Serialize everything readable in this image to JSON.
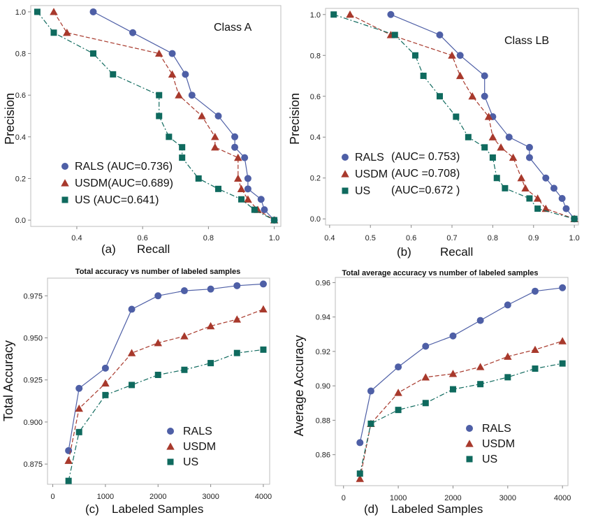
{
  "colors": {
    "RALS": "#4e5fa6",
    "USDM": "#a8392c",
    "US": "#0f6a5e",
    "frame": "#bdbdbd"
  },
  "chart_data": [
    {
      "id": "a",
      "type": "line",
      "subplot_tag": "(a)",
      "xlabel": "Recall",
      "ylabel": "Precision",
      "annotation": "Class A",
      "xlim": [
        0.26,
        1.02
      ],
      "ylim": [
        -0.03,
        1.03
      ],
      "xticks": [
        0.4,
        0.6,
        0.8,
        1.0
      ],
      "xtick_labels": [
        "0.4",
        "0.6",
        "0.8",
        "1.0"
      ],
      "yticks": [
        0.0,
        0.2,
        0.4,
        0.6,
        0.8,
        1.0
      ],
      "ytick_labels": [
        "0.0",
        "0.2",
        "0.4",
        "0.6",
        "0.8",
        "1.0"
      ],
      "legend_position": "bottom-left",
      "series": [
        {
          "name": "RALS",
          "legend": "RALS (AUC=0.736)",
          "marker": "circle",
          "x": [
            0.45,
            0.57,
            0.69,
            0.73,
            0.75,
            0.83,
            0.88,
            0.88,
            0.91,
            0.92,
            0.92,
            0.96,
            0.97,
            1.0
          ],
          "y": [
            1.0,
            0.9,
            0.8,
            0.7,
            0.6,
            0.5,
            0.4,
            0.35,
            0.3,
            0.2,
            0.15,
            0.1,
            0.05,
            0.0
          ]
        },
        {
          "name": "USDM",
          "legend": "USDM(AUC=0.689)",
          "marker": "triangle",
          "x": [
            0.33,
            0.37,
            0.65,
            0.69,
            0.71,
            0.78,
            0.82,
            0.82,
            0.89,
            0.89,
            0.9,
            0.92,
            0.95,
            1.0
          ],
          "y": [
            1.0,
            0.9,
            0.8,
            0.7,
            0.6,
            0.5,
            0.4,
            0.35,
            0.3,
            0.2,
            0.15,
            0.1,
            0.05,
            0.0
          ]
        },
        {
          "name": "US",
          "legend": "US (AUC=0.641)",
          "marker": "square",
          "x": [
            0.28,
            0.33,
            0.45,
            0.51,
            0.65,
            0.65,
            0.68,
            0.72,
            0.72,
            0.77,
            0.83,
            0.9,
            0.94,
            1.0
          ],
          "y": [
            1.0,
            0.9,
            0.8,
            0.7,
            0.6,
            0.5,
            0.4,
            0.35,
            0.3,
            0.2,
            0.15,
            0.1,
            0.05,
            0.0
          ]
        }
      ]
    },
    {
      "id": "b",
      "type": "line",
      "subplot_tag": "(b)",
      "xlabel": "Recall",
      "ylabel": "Precision",
      "annotation": "Class LB",
      "xlim": [
        0.39,
        1.01
      ],
      "ylim": [
        -0.03,
        1.03
      ],
      "xticks": [
        0.4,
        0.5,
        0.6,
        0.7,
        0.8,
        0.9,
        1.0
      ],
      "xtick_labels": [
        "0.4",
        "0.5",
        "0.6",
        "0.7",
        "0.8",
        "0.9",
        "1.0"
      ],
      "yticks": [
        0.0,
        0.2,
        0.4,
        0.6,
        0.8,
        1.0
      ],
      "ytick_labels": [
        "0.0",
        "0.2",
        "0.4",
        "0.6",
        "0.8",
        "1.0"
      ],
      "legend_position": "bottom-left",
      "series": [
        {
          "name": "RALS",
          "legend": "RALS",
          "auc_label": "(AUC= 0.753)",
          "marker": "circle",
          "x": [
            0.55,
            0.67,
            0.72,
            0.78,
            0.78,
            0.8,
            0.84,
            0.89,
            0.89,
            0.93,
            0.95,
            0.97,
            0.98,
            1.0
          ],
          "y": [
            1.0,
            0.9,
            0.8,
            0.7,
            0.6,
            0.5,
            0.4,
            0.35,
            0.3,
            0.2,
            0.15,
            0.1,
            0.05,
            0.0
          ]
        },
        {
          "name": "USDM",
          "legend": "USDM",
          "auc_label": "(AUC =0.708)",
          "marker": "triangle",
          "x": [
            0.45,
            0.55,
            0.7,
            0.72,
            0.75,
            0.79,
            0.8,
            0.82,
            0.85,
            0.87,
            0.88,
            0.91,
            0.93,
            1.0
          ],
          "y": [
            1.0,
            0.9,
            0.8,
            0.7,
            0.6,
            0.5,
            0.4,
            0.35,
            0.3,
            0.2,
            0.15,
            0.1,
            0.05,
            0.0
          ]
        },
        {
          "name": "US",
          "legend": "US",
          "auc_label": "(AUC=0.672 )",
          "marker": "square",
          "x": [
            0.41,
            0.56,
            0.61,
            0.63,
            0.67,
            0.71,
            0.74,
            0.78,
            0.8,
            0.81,
            0.83,
            0.89,
            0.91,
            1.0
          ],
          "y": [
            1.0,
            0.9,
            0.8,
            0.7,
            0.6,
            0.5,
            0.4,
            0.35,
            0.3,
            0.2,
            0.15,
            0.1,
            0.05,
            0.0
          ]
        }
      ]
    },
    {
      "id": "c",
      "type": "line",
      "title": "Total accuracy vs number of labeled samples",
      "subplot_tag": "(c)",
      "xlabel": "Labeled Samples",
      "ylabel": "Total Accuracy",
      "xlim": [
        -100,
        4120
      ],
      "ylim": [
        0.863,
        0.9855
      ],
      "xticks": [
        0,
        1000,
        2000,
        3000,
        4000
      ],
      "xtick_labels": [
        "0",
        "1000",
        "2000",
        "3000",
        "4000"
      ],
      "yticks": [
        0.875,
        0.9,
        0.925,
        0.95,
        0.975
      ],
      "ytick_labels": [
        "0.875",
        "0.900",
        "0.925",
        "0.950",
        "0.975"
      ],
      "legend_position": "bottom-right",
      "series": [
        {
          "name": "RALS",
          "legend": "RALS",
          "marker": "circle",
          "x": [
            300,
            500,
            1000,
            1500,
            2000,
            2500,
            3000,
            3500,
            4000
          ],
          "y": [
            0.883,
            0.92,
            0.932,
            0.967,
            0.975,
            0.978,
            0.979,
            0.981,
            0.982
          ]
        },
        {
          "name": "USDM",
          "legend": "USDM",
          "marker": "triangle",
          "x": [
            300,
            500,
            1000,
            1500,
            2000,
            2500,
            3000,
            3500,
            4000
          ],
          "y": [
            0.877,
            0.908,
            0.923,
            0.941,
            0.947,
            0.951,
            0.957,
            0.961,
            0.967
          ]
        },
        {
          "name": "US",
          "legend": "US",
          "marker": "square",
          "x": [
            300,
            500,
            1000,
            1500,
            2000,
            2500,
            3000,
            3500,
            4000
          ],
          "y": [
            0.865,
            0.894,
            0.916,
            0.922,
            0.928,
            0.931,
            0.935,
            0.941,
            0.943
          ]
        }
      ]
    },
    {
      "id": "d",
      "type": "line",
      "title": "Total average accuracy vs number of labeled samples",
      "subplot_tag": "(d)",
      "xlabel": "Labeled Samples",
      "ylabel": "Average Accuracy",
      "xlim": [
        -150,
        4100
      ],
      "ylim": [
        0.842,
        0.963
      ],
      "xticks": [
        0,
        1000,
        2000,
        3000,
        4000
      ],
      "xtick_labels": [
        "0",
        "1000",
        "2000",
        "3000",
        "4000"
      ],
      "yticks": [
        0.86,
        0.88,
        0.9,
        0.92,
        0.94,
        0.96
      ],
      "ytick_labels": [
        "0.86",
        "0.88",
        "0.90",
        "0.92",
        "0.94",
        "0.96"
      ],
      "legend_position": "bottom-right",
      "series": [
        {
          "name": "RALS",
          "legend": "RALS",
          "marker": "circle",
          "x": [
            300,
            500,
            1000,
            1500,
            2000,
            2500,
            3000,
            3500,
            4000
          ],
          "y": [
            0.867,
            0.897,
            0.911,
            0.923,
            0.929,
            0.938,
            0.947,
            0.955,
            0.957
          ]
        },
        {
          "name": "USDM",
          "legend": "USDM",
          "marker": "triangle",
          "x": [
            300,
            500,
            1000,
            1500,
            2000,
            2500,
            3000,
            3500,
            4000
          ],
          "y": [
            0.846,
            0.878,
            0.896,
            0.905,
            0.907,
            0.911,
            0.917,
            0.921,
            0.926
          ]
        },
        {
          "name": "US",
          "legend": "US",
          "marker": "square",
          "x": [
            300,
            500,
            1000,
            1500,
            2000,
            2500,
            3000,
            3500,
            4000
          ],
          "y": [
            0.849,
            0.878,
            0.886,
            0.89,
            0.898,
            0.901,
            0.905,
            0.91,
            0.913
          ]
        }
      ]
    }
  ]
}
